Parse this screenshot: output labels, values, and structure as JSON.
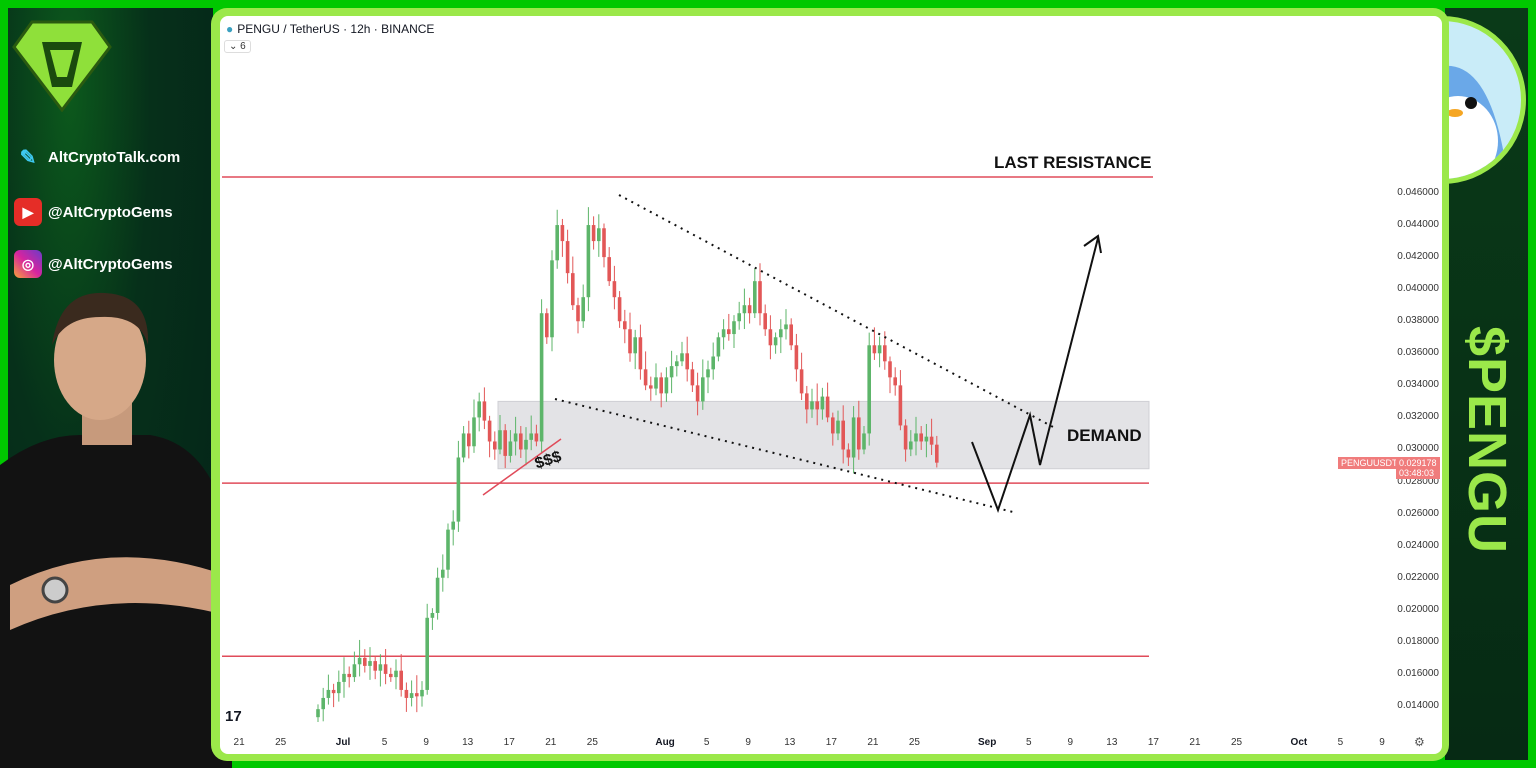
{
  "branding": {
    "site": "AltCryptoTalk.com",
    "youtube": "@AltCryptoGems",
    "instagram": "@AltCryptoGems",
    "ticker_banner": "$PENGU"
  },
  "chart_header": {
    "title": "PENGU / TetherUS · 12h · BINANCE",
    "collapsed_indicators": "6"
  },
  "annotations": {
    "last_resistance": "LAST RESISTANCE",
    "demand": "DEMAND",
    "liquidity": "$$$"
  },
  "price_tag": {
    "symbol": "PENGUUSDT",
    "price": "0.029178",
    "countdown": "03:48:03"
  },
  "colors": {
    "up": "#5db56a",
    "down": "#e25757",
    "level_line": "#e04b5a",
    "demand_zone": "#e3e3e6",
    "accent_green": "#9be84a"
  },
  "chart_data": {
    "type": "candlestick",
    "title": "PENGU / TetherUS · 12h · BINANCE",
    "interval": "12h",
    "start": "Jun 30",
    "ylim": [
      0.0125,
      0.0478
    ],
    "y_ticks": [
      "0.046000",
      "0.044000",
      "0.042000",
      "0.040000",
      "0.038000",
      "0.036000",
      "0.034000",
      "0.032000",
      "0.030000",
      "0.028000",
      "0.026000",
      "0.024000",
      "0.022000",
      "0.020000",
      "0.018000",
      "0.016000",
      "0.014000"
    ],
    "x_ticks": [
      "21",
      "25",
      "Jul",
      "5",
      "9",
      "13",
      "17",
      "21",
      "25",
      "Aug",
      "5",
      "9",
      "13",
      "17",
      "21",
      "25",
      "Sep",
      "5",
      "9",
      "13",
      "17",
      "21",
      "25",
      "Oct",
      "5",
      "9"
    ],
    "first_open": 0.0133,
    "closes": [
      0.0138,
      0.0145,
      0.015,
      0.0148,
      0.0155,
      0.016,
      0.0158,
      0.0166,
      0.017,
      0.0165,
      0.0168,
      0.0162,
      0.0166,
      0.016,
      0.0158,
      0.0162,
      0.015,
      0.0145,
      0.0148,
      0.0146,
      0.015,
      0.0195,
      0.0198,
      0.022,
      0.0225,
      0.025,
      0.0255,
      0.0295,
      0.031,
      0.0302,
      0.032,
      0.033,
      0.0318,
      0.0305,
      0.03,
      0.0312,
      0.0296,
      0.0305,
      0.031,
      0.03,
      0.0306,
      0.031,
      0.0305,
      0.0385,
      0.037,
      0.0418,
      0.044,
      0.043,
      0.041,
      0.039,
      0.038,
      0.0395,
      0.044,
      0.043,
      0.0438,
      0.042,
      0.0405,
      0.0395,
      0.038,
      0.0375,
      0.036,
      0.037,
      0.035,
      0.034,
      0.0338,
      0.0345,
      0.0335,
      0.0345,
      0.0352,
      0.0355,
      0.036,
      0.035,
      0.034,
      0.033,
      0.0345,
      0.035,
      0.0358,
      0.037,
      0.0375,
      0.0372,
      0.038,
      0.0385,
      0.039,
      0.0385,
      0.0405,
      0.0385,
      0.0375,
      0.0365,
      0.037,
      0.0375,
      0.0378,
      0.0365,
      0.035,
      0.0335,
      0.0325,
      0.033,
      0.0325,
      0.0333,
      0.032,
      0.031,
      0.0318,
      0.03,
      0.0295,
      0.032,
      0.03,
      0.031,
      0.0365,
      0.036,
      0.0365,
      0.0355,
      0.0345,
      0.034,
      0.0315,
      0.03,
      0.0305,
      0.031,
      0.0305,
      0.0308,
      0.0303,
      0.029178
    ],
    "levels": {
      "last_resistance": 0.047,
      "support": 0.0279,
      "lower_support": 0.0171
    },
    "demand_zone": [
      0.0288,
      0.033
    ]
  }
}
